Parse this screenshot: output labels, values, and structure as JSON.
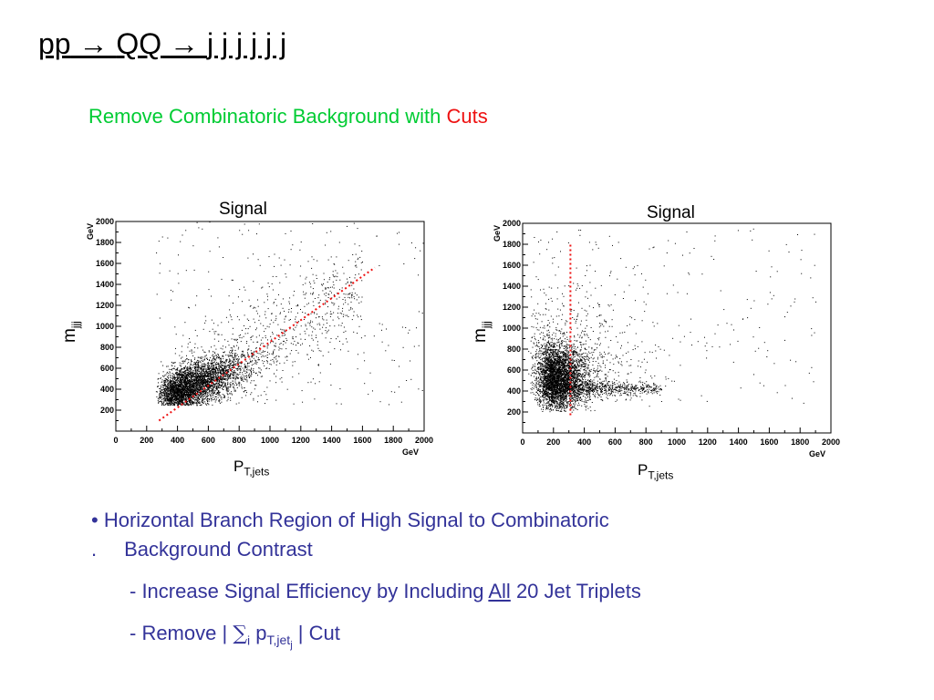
{
  "title": {
    "prefix": "pp",
    "arrow": "→",
    "mid": "QQ",
    "suffix": "j j j j j j"
  },
  "subtitle": {
    "green_part": "Remove Combinatoric Background with ",
    "red_part": "Cuts",
    "colors": {
      "green": "#00cc33",
      "red": "#ee1111"
    }
  },
  "bullets": {
    "bullet_char": "•",
    "line1": "Horizontal Branch Region of High Signal to Combinatoric",
    "line1_cont_marker": ".",
    "line1_cont": "Background Contrast",
    "item2_prefix": "- Increase Signal Efficiency by Including ",
    "item2_underlined": "All",
    "item2_suffix": " 20 Jet Triplets",
    "item3_prefix": "- Remove  | ",
    "item3_sigma": "∑",
    "item3_sub_i": "i",
    "item3_p": " p",
    "item3_sub_T": "T,jet",
    "item3_sub_j": "j",
    "item3_suffix": " |  Cut",
    "color": "#333399"
  },
  "chart_data": [
    {
      "type": "scatter",
      "title": "Signal",
      "ylabel_main": "m",
      "ylabel_sub": "jjj",
      "xlabel_main": "P",
      "xlabel_sub": "T,jets",
      "x_unit": "GeV",
      "y_unit": "GeV",
      "xlim": [
        0,
        2000
      ],
      "ylim": [
        0,
        2000
      ],
      "x_ticks": [
        0,
        200,
        400,
        600,
        800,
        1000,
        1200,
        1400,
        1600,
        1800,
        2000
      ],
      "y_ticks": [
        200,
        400,
        600,
        800,
        1000,
        1200,
        1400,
        1600,
        1800,
        2000
      ],
      "point_color": "#000000",
      "distribution": "dense cluster near (300-800, 300-600) elongated along a diagonal band up to ~(1600, 1500), sparse points to (2000, 2000)",
      "cut_line": {
        "style": "dotted",
        "color": "#ee1111",
        "from": [
          280,
          100
        ],
        "to": [
          1680,
          1560
        ]
      }
    },
    {
      "type": "scatter",
      "title": "Signal",
      "ylabel_main": "m",
      "ylabel_sub": "jjj",
      "xlabel_main": "P",
      "xlabel_sub": "T,jets",
      "x_unit": "GeV",
      "y_unit": "GeV",
      "xlim": [
        0,
        2000
      ],
      "ylim": [
        0,
        2000
      ],
      "x_ticks": [
        0,
        200,
        400,
        600,
        800,
        1000,
        1200,
        1400,
        1600,
        1800,
        2000
      ],
      "y_ticks": [
        200,
        400,
        600,
        800,
        1000,
        1200,
        1400,
        1600,
        1800,
        2000
      ],
      "point_color": "#000000",
      "distribution": "dense cluster near (0-400, 300-700) with a horizontal branch at m~450 extending to ~900, sparse points to (1900, 1300)",
      "cut_line": {
        "style": "dotted",
        "color": "#ee1111",
        "from": [
          310,
          170
        ],
        "to": [
          310,
          1800
        ]
      }
    }
  ]
}
